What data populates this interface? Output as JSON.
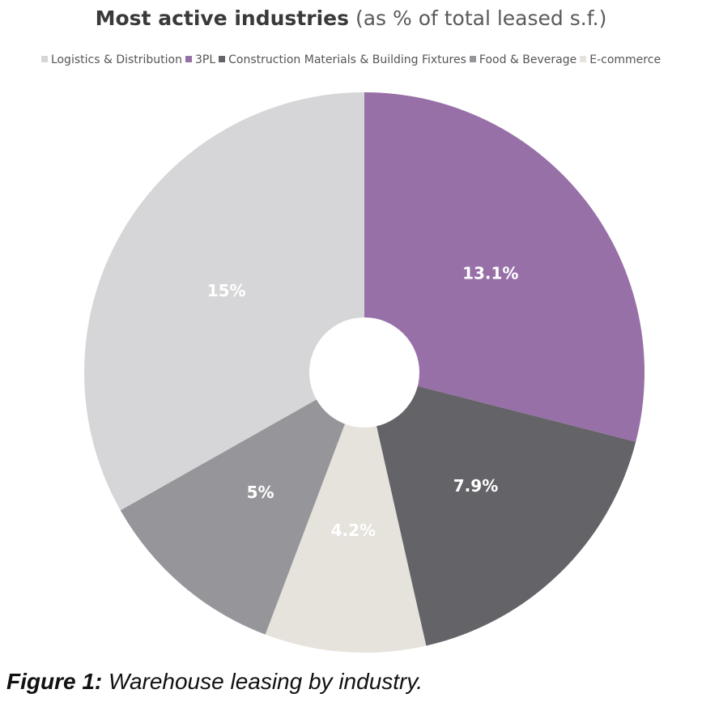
{
  "title": {
    "bold": "Most active industries",
    "light": "(as % of total leased s.f.)"
  },
  "caption": {
    "label": "Figure 1:",
    "text": "Warehouse leasing by industry."
  },
  "chart_data": {
    "type": "pie",
    "donut": true,
    "legend_position": "top",
    "slices": [
      {
        "name": "3PL",
        "value": 13.1,
        "label": "13.1%",
        "color": "#9870a8"
      },
      {
        "name": "Construction Materials & Building Fixtures",
        "value": 7.9,
        "label": "7.9%",
        "color": "#646468"
      },
      {
        "name": "E-commerce",
        "value": 4.2,
        "label": "4.2%",
        "color": "#e6e2dc"
      },
      {
        "name": "Food & Beverage",
        "value": 5,
        "label": "5%",
        "color": "#96969a"
      },
      {
        "name": "Logistics & Distribution",
        "value": 15,
        "label": "15%",
        "color": "#d6d6d8"
      }
    ],
    "legend": [
      {
        "name": "Logistics & Distribution",
        "color": "#d6d6d8"
      },
      {
        "name": "3PL",
        "color": "#9870a8"
      },
      {
        "name": "Construction Materials & Building Fixtures",
        "color": "#646468"
      },
      {
        "name": "Food & Beverage",
        "color": "#96969a"
      },
      {
        "name": "E-commerce",
        "color": "#e6e2dc"
      }
    ]
  }
}
